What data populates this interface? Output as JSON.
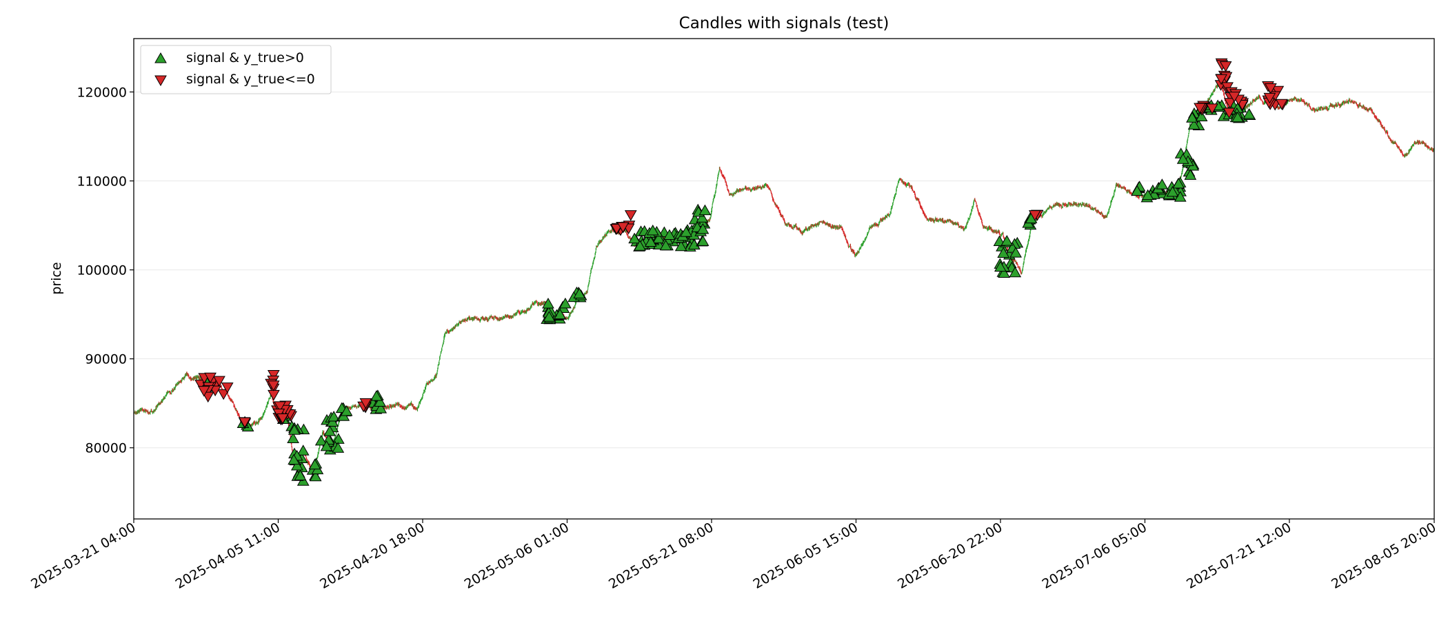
{
  "chart_data": {
    "type": "candlestick",
    "title": "Candles with signals (test)",
    "xlabel": "",
    "ylabel": "price",
    "x_start": "2025-03-21 04:00",
    "x_end": "2025-08-05 20:00",
    "x_unit": "hour",
    "x_ticks": [
      "2025-03-21 04:00",
      "2025-04-05 11:00",
      "2025-04-20 18:00",
      "2025-05-06 01:00",
      "2025-05-21 08:00",
      "2025-06-05 15:00",
      "2025-06-20 22:00",
      "2025-07-06 05:00",
      "2025-07-21 12:00",
      "2025-08-05 20:00"
    ],
    "y_ticks": [
      80000,
      90000,
      100000,
      110000,
      120000
    ],
    "ylim": [
      72000,
      126000
    ],
    "grid": "horizontal",
    "legend_position": "top-left",
    "colors": {
      "up": "#2ca02c",
      "down": "#d62728",
      "edge": "#000000",
      "grid": "#e8e8e8"
    },
    "price_path": [
      [
        "2025-03-21 04:00",
        84000
      ],
      [
        "2025-03-23 04:00",
        84300
      ],
      [
        "2025-03-25 04:00",
        86500
      ],
      [
        "2025-03-26 16:00",
        88200
      ],
      [
        "2025-03-28 04:00",
        87500
      ],
      [
        "2025-03-29 12:00",
        87800
      ],
      [
        "2025-03-30 12:00",
        86500
      ],
      [
        "2025-03-31 12:00",
        85500
      ],
      [
        "2025-04-01 12:00",
        83000
      ],
      [
        "2025-04-02 12:00",
        82500
      ],
      [
        "2025-04-03 16:00",
        83500
      ],
      [
        "2025-04-04 16:00",
        86000
      ],
      [
        "2025-04-05 12:00",
        84000
      ],
      [
        "2025-04-06 12:00",
        83000
      ],
      [
        "2025-04-07 04:00",
        78000
      ],
      [
        "2025-04-08 04:00",
        79500
      ],
      [
        "2025-04-09 04:00",
        77000
      ],
      [
        "2025-04-10 04:00",
        82000
      ],
      [
        "2025-04-11 04:00",
        80000
      ],
      [
        "2025-04-12 04:00",
        84000
      ],
      [
        "2025-04-14 04:00",
        85000
      ],
      [
        "2025-04-16 04:00",
        84500
      ],
      [
        "2025-04-18 04:00",
        85000
      ],
      [
        "2025-04-20 04:00",
        84500
      ],
      [
        "2025-04-21 04:00",
        87000
      ],
      [
        "2025-04-22 04:00",
        88000
      ],
      [
        "2025-04-23 04:00",
        93000
      ],
      [
        "2025-04-24 04:00",
        93500
      ],
      [
        "2025-04-25 12:00",
        94500
      ],
      [
        "2025-04-27 04:00",
        94300
      ],
      [
        "2025-04-29 04:00",
        94800
      ],
      [
        "2025-05-01 04:00",
        95000
      ],
      [
        "2025-05-02 16:00",
        96500
      ],
      [
        "2025-05-04 04:00",
        96000
      ],
      [
        "2025-05-05 04:00",
        95000
      ],
      [
        "2025-05-06 04:00",
        94500
      ],
      [
        "2025-05-07 04:00",
        96500
      ],
      [
        "2025-05-08 04:00",
        97500
      ],
      [
        "2025-05-09 04:00",
        103000
      ],
      [
        "2025-05-10 04:00",
        104000
      ],
      [
        "2025-05-12 04:00",
        104500
      ],
      [
        "2025-05-13 04:00",
        103000
      ],
      [
        "2025-05-15 04:00",
        103500
      ],
      [
        "2025-05-17 04:00",
        103800
      ],
      [
        "2025-05-19 04:00",
        104000
      ],
      [
        "2025-05-21 04:00",
        106000
      ],
      [
        "2025-05-22 04:00",
        111500
      ],
      [
        "2025-05-23 04:00",
        108500
      ],
      [
        "2025-05-25 04:00",
        109000
      ],
      [
        "2025-05-27 04:00",
        109500
      ],
      [
        "2025-05-29 04:00",
        105000
      ],
      [
        "2025-05-31 04:00",
        104500
      ],
      [
        "2025-06-02 04:00",
        105500
      ],
      [
        "2025-06-04 04:00",
        104500
      ],
      [
        "2025-06-05 12:00",
        101500
      ],
      [
        "2025-06-07 04:00",
        105000
      ],
      [
        "2025-06-09 04:00",
        106000
      ],
      [
        "2025-06-10 04:00",
        110000
      ],
      [
        "2025-06-11 12:00",
        109000
      ],
      [
        "2025-06-13 04:00",
        105500
      ],
      [
        "2025-06-15 04:00",
        105500
      ],
      [
        "2025-06-17 04:00",
        104500
      ],
      [
        "2025-06-18 04:00",
        107500
      ],
      [
        "2025-06-19 04:00",
        104800
      ],
      [
        "2025-06-21 04:00",
        104000
      ],
      [
        "2025-06-22 04:00",
        101000
      ],
      [
        "2025-06-23 04:00",
        99500
      ],
      [
        "2025-06-24 04:00",
        105000
      ],
      [
        "2025-06-26 04:00",
        107000
      ],
      [
        "2025-06-28 04:00",
        107500
      ],
      [
        "2025-06-30 04:00",
        107000
      ],
      [
        "2025-07-02 04:00",
        106000
      ],
      [
        "2025-07-03 04:00",
        109500
      ],
      [
        "2025-07-05 04:00",
        108500
      ],
      [
        "2025-07-07 04:00",
        108500
      ],
      [
        "2025-07-09 04:00",
        108800
      ],
      [
        "2025-07-10 04:00",
        111000
      ],
      [
        "2025-07-11 04:00",
        117500
      ],
      [
        "2025-07-12 12:00",
        118000
      ],
      [
        "2025-07-14 04:00",
        121500
      ],
      [
        "2025-07-15 04:00",
        117500
      ],
      [
        "2025-07-17 04:00",
        118500
      ],
      [
        "2025-07-18 04:00",
        119500
      ],
      [
        "2025-07-20 04:00",
        118000
      ],
      [
        "2025-07-22 04:00",
        119500
      ],
      [
        "2025-07-24 04:00",
        118000
      ],
      [
        "2025-07-26 04:00",
        118500
      ],
      [
        "2025-07-28 04:00",
        119000
      ],
      [
        "2025-07-30 04:00",
        118000
      ],
      [
        "2025-08-01 04:00",
        114500
      ],
      [
        "2025-08-02 12:00",
        113000
      ],
      [
        "2025-08-04 04:00",
        114500
      ],
      [
        "2025-08-05 20:00",
        113500
      ]
    ],
    "series": [
      {
        "name": "signal & y_true>0",
        "marker": "triangle-up",
        "color": "#2ca02c",
        "clusters": [
          [
            "2025-03-28 12:00",
            "2025-03-29 04:00",
            86800,
            87800,
            4
          ],
          [
            "2025-04-01 16:00",
            "2025-04-02 08:00",
            82300,
            83000,
            4
          ],
          [
            "2025-04-05 20:00",
            "2025-04-06 08:00",
            83000,
            84500,
            6
          ],
          [
            "2025-04-06 20:00",
            "2025-04-08 04:00",
            76000,
            82500,
            18
          ],
          [
            "2025-04-09 00:00",
            "2025-04-09 16:00",
            76500,
            78500,
            8
          ],
          [
            "2025-04-10 00:00",
            "2025-04-11 20:00",
            79500,
            83500,
            16
          ],
          [
            "2025-04-12 00:00",
            "2025-04-13 00:00",
            83500,
            84500,
            6
          ],
          [
            "2025-04-15 08:00",
            "2025-04-16 12:00",
            84000,
            86000,
            8
          ],
          [
            "2025-05-03 20:00",
            "2025-05-06 04:00",
            94300,
            96200,
            18
          ],
          [
            "2025-05-06 16:00",
            "2025-05-07 16:00",
            96500,
            97500,
            8
          ],
          [
            "2025-05-13 04:00",
            "2025-05-19 20:00",
            102500,
            104500,
            56
          ],
          [
            "2025-05-19 12:00",
            "2025-05-20 16:00",
            103000,
            107000,
            14
          ],
          [
            "2025-06-20 16:00",
            "2025-06-22 20:00",
            99500,
            103500,
            18
          ],
          [
            "2025-06-23 20:00",
            "2025-06-24 12:00",
            105000,
            106000,
            5
          ],
          [
            "2025-07-05 04:00",
            "2025-07-10 00:00",
            108000,
            109800,
            30
          ],
          [
            "2025-07-10 00:00",
            "2025-07-11 08:00",
            110500,
            114000,
            10
          ],
          [
            "2025-07-11 04:00",
            "2025-07-12 20:00",
            116000,
            119000,
            12
          ],
          [
            "2025-07-13 00:00",
            "2025-07-17 12:00",
            117000,
            118500,
            20
          ]
        ]
      },
      {
        "name": "signal & y_true<=0",
        "marker": "triangle-down",
        "color": "#d62728",
        "clusters": [
          [
            "2025-03-28 04:00",
            "2025-03-31 04:00",
            85700,
            88000,
            14
          ],
          [
            "2025-04-01 16:00",
            "2025-04-02 00:00",
            82800,
            83000,
            3
          ],
          [
            "2025-04-04 16:00",
            "2025-04-05 00:00",
            85000,
            88800,
            6
          ],
          [
            "2025-04-05 04:00",
            "2025-04-07 00:00",
            83000,
            84800,
            20
          ],
          [
            "2025-04-14 04:00",
            "2025-04-15 00:00",
            84500,
            85200,
            5
          ],
          [
            "2025-05-11 04:00",
            "2025-05-13 00:00",
            104500,
            105200,
            10
          ],
          [
            "2025-05-12 16:00",
            "2025-05-13 00:00",
            106200,
            106200,
            1
          ],
          [
            "2025-06-24 04:00",
            "2025-06-24 20:00",
            106200,
            106300,
            3
          ],
          [
            "2025-07-12 00:00",
            "2025-07-13 16:00",
            118000,
            118500,
            8
          ],
          [
            "2025-07-14 04:00",
            "2025-07-14 20:00",
            120000,
            123300,
            10
          ],
          [
            "2025-07-14 20:00",
            "2025-07-16 16:00",
            117500,
            120800,
            12
          ],
          [
            "2025-07-19 04:00",
            "2025-07-20 20:00",
            118500,
            120800,
            12
          ]
        ]
      }
    ]
  }
}
